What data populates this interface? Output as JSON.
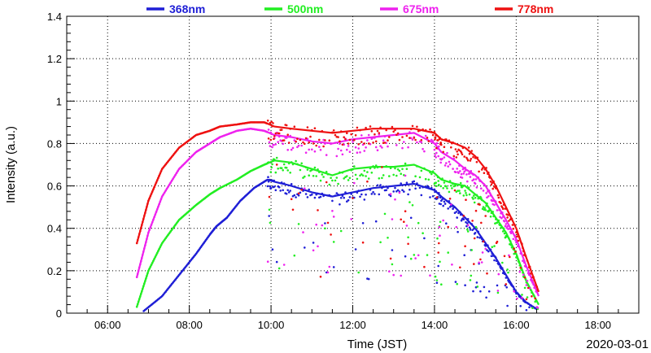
{
  "chart_data": {
    "type": "scatter",
    "title": "",
    "xlabel": "Time (JST)",
    "ylabel": "Intensity (a.u.)",
    "date": "2020-03-01",
    "xlim": [
      "05:00",
      "19:00"
    ],
    "ylim": [
      0,
      1.4
    ],
    "grid": true,
    "legend_position": "top",
    "xticks": [
      "06:00",
      "08:00",
      "10:00",
      "12:00",
      "14:00",
      "16:00",
      "18:00"
    ],
    "yticks": [
      "0",
      "0.2",
      "0.4",
      "0.6",
      "0.8",
      "1",
      "1.2",
      "1.4"
    ],
    "series": [
      {
        "name": "368nm",
        "color": "#1f1fd6",
        "x": [
          "06:53",
          "07:20",
          "07:45",
          "08:10",
          "08:30",
          "08:40",
          "08:55",
          "09:15",
          "09:35",
          "09:55",
          "10:05",
          "10:30",
          "11:00",
          "11:30",
          "12:00",
          "12:30",
          "13:00",
          "13:30",
          "14:00",
          "14:10",
          "14:30",
          "14:45",
          "15:00",
          "15:15",
          "15:30",
          "15:45",
          "16:00",
          "16:15",
          "16:30"
        ],
        "y": [
          0.01,
          0.08,
          0.18,
          0.28,
          0.37,
          0.41,
          0.45,
          0.53,
          0.59,
          0.63,
          0.62,
          0.6,
          0.57,
          0.55,
          0.57,
          0.59,
          0.6,
          0.61,
          0.58,
          0.55,
          0.5,
          0.45,
          0.4,
          0.33,
          0.26,
          0.18,
          0.1,
          0.05,
          0.02
        ]
      },
      {
        "name": "500nm",
        "color": "#22ee22",
        "x": [
          "06:43",
          "07:00",
          "07:20",
          "07:45",
          "08:10",
          "08:30",
          "08:45",
          "09:10",
          "09:30",
          "09:50",
          "10:05",
          "10:30",
          "11:00",
          "11:30",
          "12:00",
          "12:30",
          "13:00",
          "13:30",
          "14:00",
          "14:10",
          "14:30",
          "14:45",
          "15:00",
          "15:15",
          "15:30",
          "15:45",
          "16:00",
          "16:15",
          "16:33"
        ],
        "y": [
          0.03,
          0.2,
          0.33,
          0.44,
          0.51,
          0.56,
          0.59,
          0.63,
          0.67,
          0.7,
          0.72,
          0.71,
          0.68,
          0.65,
          0.68,
          0.69,
          0.69,
          0.7,
          0.66,
          0.63,
          0.61,
          0.6,
          0.56,
          0.52,
          0.45,
          0.38,
          0.28,
          0.15,
          0.04
        ]
      },
      {
        "name": "675nm",
        "color": "#ee22ee",
        "x": [
          "06:43",
          "07:00",
          "07:20",
          "07:45",
          "08:10",
          "08:30",
          "08:45",
          "09:10",
          "09:30",
          "09:50",
          "10:05",
          "10:30",
          "11:00",
          "11:30",
          "12:00",
          "12:30",
          "13:00",
          "13:30",
          "14:00",
          "14:10",
          "14:30",
          "14:45",
          "15:00",
          "15:15",
          "15:30",
          "15:45",
          "16:00",
          "16:15",
          "16:33"
        ],
        "y": [
          0.17,
          0.38,
          0.55,
          0.68,
          0.76,
          0.8,
          0.83,
          0.86,
          0.87,
          0.86,
          0.84,
          0.83,
          0.81,
          0.8,
          0.82,
          0.83,
          0.84,
          0.85,
          0.8,
          0.76,
          0.72,
          0.68,
          0.65,
          0.6,
          0.52,
          0.44,
          0.35,
          0.22,
          0.08
        ]
      },
      {
        "name": "778nm",
        "color": "#ee1111",
        "x": [
          "06:43",
          "07:00",
          "07:20",
          "07:45",
          "08:10",
          "08:30",
          "08:45",
          "09:10",
          "09:30",
          "09:50",
          "10:05",
          "10:30",
          "11:00",
          "11:30",
          "12:00",
          "12:30",
          "13:00",
          "13:30",
          "14:00",
          "14:10",
          "14:30",
          "14:45",
          "15:00",
          "15:15",
          "15:30",
          "15:45",
          "16:00",
          "16:15",
          "16:33"
        ],
        "y": [
          0.33,
          0.53,
          0.68,
          0.78,
          0.84,
          0.86,
          0.88,
          0.89,
          0.9,
          0.9,
          0.88,
          0.87,
          0.86,
          0.85,
          0.86,
          0.87,
          0.87,
          0.87,
          0.85,
          0.82,
          0.8,
          0.78,
          0.74,
          0.68,
          0.6,
          0.5,
          0.4,
          0.26,
          0.1
        ]
      }
    ]
  }
}
